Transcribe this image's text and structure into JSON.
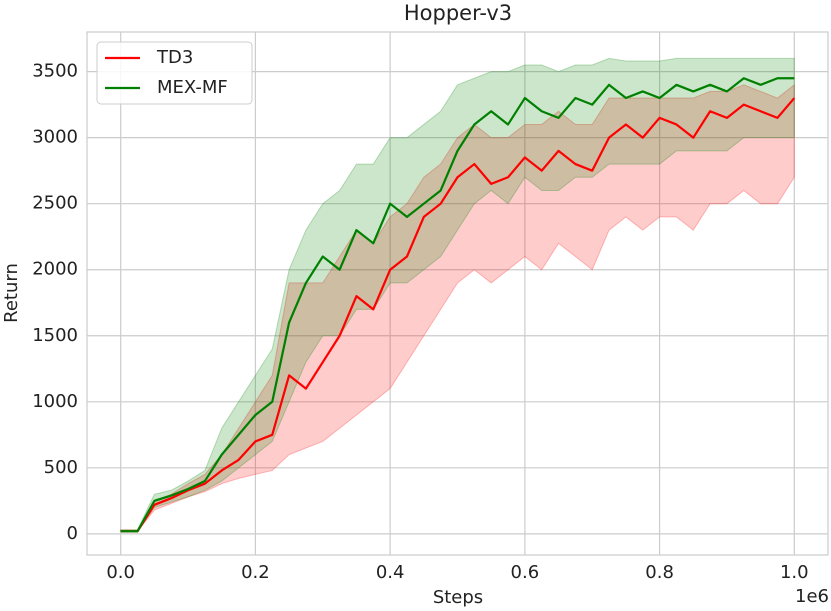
{
  "chart_data": {
    "type": "line",
    "title": "Hopper-v3",
    "x_label": "Steps",
    "y_label": "Return",
    "x_offset_label": "1e6",
    "x": [
      0,
      0.025,
      0.05,
      0.075,
      0.1,
      0.125,
      0.15,
      0.175,
      0.2,
      0.225,
      0.25,
      0.275,
      0.3,
      0.325,
      0.35,
      0.375,
      0.4,
      0.425,
      0.45,
      0.475,
      0.5,
      0.525,
      0.55,
      0.575,
      0.6,
      0.625,
      0.65,
      0.675,
      0.7,
      0.725,
      0.75,
      0.775,
      0.8,
      0.825,
      0.85,
      0.875,
      0.9,
      0.925,
      0.95,
      0.975,
      1.0
    ],
    "series": [
      {
        "name": "TD3",
        "color": "#ff0000",
        "values": [
          20,
          20,
          220,
          270,
          330,
          380,
          480,
          560,
          700,
          750,
          1200,
          1100,
          1300,
          1500,
          1800,
          1700,
          2000,
          2100,
          2400,
          2500,
          2700,
          2800,
          2650,
          2700,
          2850,
          2750,
          2900,
          2800,
          2750,
          3000,
          3100,
          3000,
          3150,
          3100,
          3000,
          3200,
          3150,
          3250,
          3200,
          3150,
          3300
        ],
        "lower": [
          20,
          20,
          180,
          230,
          280,
          320,
          380,
          420,
          450,
          480,
          600,
          650,
          700,
          800,
          900,
          1000,
          1100,
          1300,
          1500,
          1700,
          1900,
          2000,
          1900,
          2000,
          2100,
          2000,
          2200,
          2100,
          2000,
          2300,
          2400,
          2300,
          2400,
          2400,
          2300,
          2500,
          2500,
          2600,
          2500,
          2500,
          2700
        ],
        "upper": [
          30,
          30,
          250,
          300,
          380,
          450,
          600,
          800,
          1000,
          1200,
          1900,
          1900,
          1900,
          2100,
          2300,
          2200,
          2400,
          2500,
          2700,
          2800,
          3000,
          3100,
          3000,
          3000,
          3100,
          3100,
          3200,
          3100,
          3100,
          3300,
          3300,
          3300,
          3300,
          3300,
          3300,
          3350,
          3350,
          3400,
          3350,
          3300,
          3400
        ]
      },
      {
        "name": "MEX-MF",
        "color": "#008000",
        "values": [
          20,
          20,
          250,
          290,
          340,
          400,
          600,
          750,
          900,
          1000,
          1600,
          1900,
          2100,
          2000,
          2300,
          2200,
          2500,
          2400,
          2500,
          2600,
          2900,
          3100,
          3200,
          3100,
          3300,
          3200,
          3150,
          3300,
          3250,
          3400,
          3300,
          3350,
          3300,
          3400,
          3350,
          3400,
          3350,
          3450,
          3400,
          3450,
          3450
        ],
        "lower": [
          20,
          20,
          200,
          240,
          280,
          330,
          400,
          500,
          600,
          700,
          1000,
          1300,
          1500,
          1500,
          1700,
          1700,
          1900,
          1900,
          2000,
          2100,
          2300,
          2500,
          2600,
          2500,
          2700,
          2600,
          2600,
          2700,
          2700,
          2800,
          2800,
          2800,
          2800,
          2900,
          2900,
          2900,
          2900,
          3000,
          3000,
          3000,
          3000
        ],
        "upper": [
          30,
          30,
          300,
          330,
          400,
          480,
          800,
          1000,
          1200,
          1400,
          2000,
          2300,
          2500,
          2600,
          2800,
          2800,
          3000,
          3000,
          3100,
          3200,
          3400,
          3450,
          3500,
          3500,
          3550,
          3550,
          3500,
          3550,
          3550,
          3600,
          3580,
          3580,
          3580,
          3600,
          3600,
          3600,
          3600,
          3600,
          3600,
          3600,
          3600
        ]
      }
    ],
    "xlim": [
      -0.05,
      1.05
    ],
    "ylim": [
      -160,
      3800
    ],
    "xticks": [
      {
        "value": 0,
        "label": "0.0"
      },
      {
        "value": 0.2,
        "label": "0.2"
      },
      {
        "value": 0.4,
        "label": "0.4"
      },
      {
        "value": 0.6,
        "label": "0.6"
      },
      {
        "value": 0.8,
        "label": "0.8"
      },
      {
        "value": 1,
        "label": "1.0"
      }
    ],
    "yticks": [
      0,
      500,
      1000,
      1500,
      2000,
      2500,
      3000,
      3500
    ],
    "grid": true,
    "legend_position": "upper-left"
  }
}
